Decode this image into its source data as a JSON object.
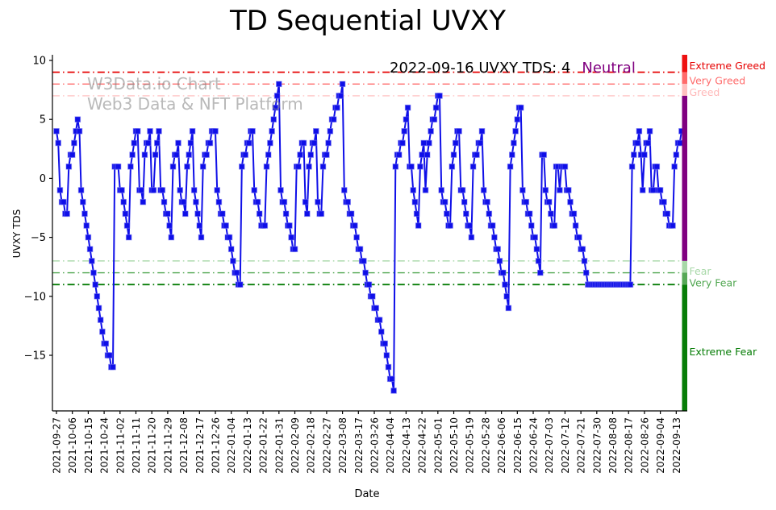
{
  "title": "TD Sequential UVXY",
  "watermark": {
    "line1": "W3Data.io Chart",
    "line2": "Web3 Data & NFT Platform"
  },
  "annotation": {
    "text": "2022-09-16 UVXY TDS: 4",
    "status": "Neutral",
    "status_color": "#800080"
  },
  "axes": {
    "xlabel": "Date",
    "ylabel": "UVXY TDS",
    "yticks": [
      {
        "value": 10,
        "label": "10"
      },
      {
        "value": 5,
        "label": "5"
      },
      {
        "value": 0,
        "label": "0"
      },
      {
        "value": -5,
        "label": "−5"
      },
      {
        "value": -10,
        "label": "−10"
      },
      {
        "value": -15,
        "label": "−15"
      }
    ],
    "ylim": [
      -19.7,
      10.48
    ]
  },
  "chart_data": {
    "type": "line",
    "title": "TD Sequential UVXY",
    "xlabel": "Date",
    "ylabel": "UVXY TDS",
    "series_name": "UVXY TDS",
    "line_color": "#0f0fe8",
    "marker": "square",
    "start_date": "2021-09-27",
    "end_date": "2022-09-16",
    "tick_step": 9,
    "x_tick_labels": [
      "2021-09-27",
      "2021-10-06",
      "2021-10-15",
      "2021-10-24",
      "2021-11-02",
      "2021-11-11",
      "2021-11-20",
      "2021-11-29",
      "2021-12-08",
      "2021-12-17",
      "2021-12-26",
      "2022-01-04",
      "2022-01-13",
      "2022-01-22",
      "2022-01-31",
      "2022-02-09",
      "2022-02-18",
      "2022-02-27",
      "2022-03-08",
      "2022-03-17",
      "2022-03-26",
      "2022-04-04",
      "2022-04-13",
      "2022-04-22",
      "2022-05-01",
      "2022-05-10",
      "2022-05-19",
      "2022-05-28",
      "2022-06-06",
      "2022-06-15",
      "2022-06-24",
      "2022-07-03",
      "2022-07-12",
      "2022-07-21",
      "2022-07-30",
      "2022-08-08",
      "2022-08-17",
      "2022-08-26",
      "2022-09-04",
      "2022-09-13"
    ],
    "values": [
      4,
      3,
      -1,
      -2,
      -2,
      -3,
      -3,
      1,
      2,
      2,
      3,
      4,
      5,
      4,
      -1,
      -2,
      -3,
      -4,
      -5,
      -6,
      -7,
      -8,
      -9,
      -10,
      -11,
      -12,
      -13,
      -14,
      -14,
      -15,
      -15,
      -16,
      -16,
      1,
      1,
      1,
      -1,
      -1,
      -2,
      -3,
      -4,
      -5,
      1,
      2,
      3,
      4,
      4,
      -1,
      -1,
      -2,
      2,
      3,
      3,
      4,
      -1,
      -1,
      2,
      3,
      4,
      -1,
      -1,
      -2,
      -3,
      -3,
      -4,
      -5,
      1,
      2,
      2,
      3,
      -1,
      -2,
      -2,
      -3,
      1,
      2,
      3,
      4,
      -1,
      -2,
      -3,
      -4,
      -5,
      1,
      2,
      2,
      3,
      3,
      4,
      4,
      4,
      -1,
      -2,
      -3,
      -3,
      -4,
      -4,
      -5,
      -5,
      -6,
      -7,
      -8,
      -8,
      -9,
      -9,
      1,
      2,
      2,
      3,
      3,
      4,
      4,
      -1,
      -2,
      -2,
      -3,
      -4,
      -4,
      -4,
      1,
      2,
      3,
      4,
      5,
      6,
      7,
      8,
      -1,
      -2,
      -2,
      -3,
      -4,
      -4,
      -5,
      -6,
      -6,
      1,
      1,
      2,
      3,
      3,
      -2,
      -3,
      1,
      2,
      3,
      3,
      4,
      -2,
      -3,
      -3,
      1,
      2,
      2,
      3,
      4,
      5,
      5,
      6,
      6,
      7,
      7,
      8,
      -1,
      -2,
      -2,
      -3,
      -3,
      -4,
      -4,
      -5,
      -6,
      -6,
      -7,
      -7,
      -8,
      -9,
      -9,
      -10,
      -10,
      -11,
      -11,
      -12,
      -12,
      -13,
      -14,
      -14,
      -15,
      -16,
      -17,
      -17,
      -18,
      1,
      2,
      2,
      3,
      3,
      4,
      5,
      6,
      1,
      1,
      -1,
      -2,
      -3,
      -4,
      1,
      2,
      3,
      -1,
      2,
      3,
      4,
      5,
      5,
      6,
      7,
      7,
      -1,
      -2,
      -2,
      -3,
      -4,
      -4,
      1,
      2,
      3,
      4,
      4,
      -1,
      -1,
      -2,
      -3,
      -4,
      -4,
      -5,
      1,
      2,
      2,
      3,
      3,
      4,
      -1,
      -2,
      -2,
      -3,
      -4,
      -4,
      -5,
      -6,
      -6,
      -7,
      -8,
      -8,
      -9,
      -10,
      -11,
      1,
      2,
      3,
      4,
      5,
      6,
      6,
      -1,
      -2,
      -2,
      -3,
      -3,
      -4,
      -5,
      -5,
      -6,
      -7,
      -8,
      2,
      2,
      -1,
      -2,
      -2,
      -3,
      -4,
      -4,
      1,
      1,
      -1,
      1,
      1,
      1,
      -1,
      -1,
      -2,
      -3,
      -3,
      -4,
      -5,
      -5,
      -6,
      -6,
      -7,
      -8,
      -9,
      -9,
      -9,
      -9,
      -9,
      -9,
      -9,
      -9,
      -9,
      -9,
      -9,
      -9,
      -9,
      -9,
      -9,
      -9,
      -9,
      -9,
      -9,
      -9,
      -9,
      -9,
      -9,
      -9,
      -9,
      1,
      2,
      3,
      3,
      4,
      2,
      -1,
      2,
      3,
      3,
      4,
      -1,
      -1,
      1,
      1,
      -1,
      -1,
      -2,
      -2,
      -3,
      -3,
      -4,
      -4,
      -4,
      1,
      2,
      3,
      3,
      4
    ],
    "threshold_lines": [
      {
        "value": 9,
        "color": "#e60000",
        "width": 1.7,
        "zone": "Extreme Greed"
      },
      {
        "value": 8,
        "color": "#ff6b6b",
        "width": 1.4,
        "zone": "Very Greed"
      },
      {
        "value": 7,
        "color": "#ffb8b8",
        "width": 1.2,
        "zone": "Greed"
      },
      {
        "value": -7,
        "color": "#9fd49f",
        "width": 1.2,
        "zone": "Fear"
      },
      {
        "value": -8,
        "color": "#4fa64f",
        "width": 1.4,
        "zone": "Very Fear"
      },
      {
        "value": -9,
        "color": "#067d06",
        "width": 1.9,
        "zone": "Extreme Fear"
      }
    ],
    "zone_bands": [
      {
        "from": 10.48,
        "to": 9,
        "color": "#ee1111",
        "zone": "Extreme Greed"
      },
      {
        "from": 9,
        "to": 8,
        "color": "#ff6b6b",
        "zone": "Very Greed"
      },
      {
        "from": 8,
        "to": 7,
        "color": "#ffc0c0",
        "zone": "Greed"
      },
      {
        "from": 7,
        "to": -7,
        "color": "#800080",
        "zone": "Neutral"
      },
      {
        "from": -7,
        "to": -8,
        "color": "#a8d8a8",
        "zone": "Fear"
      },
      {
        "from": -8,
        "to": -9,
        "color": "#57a857",
        "zone": "Very Fear"
      },
      {
        "from": -9,
        "to": -19.7,
        "color": "#077d07",
        "zone": "Extreme Fear"
      }
    ],
    "zone_labels": [
      {
        "text": "Extreme Greed",
        "value": 9.55,
        "color": "#e60000"
      },
      {
        "text": "Very Greed",
        "value": 8.3,
        "color": "#ff6b6b"
      },
      {
        "text": "Greed",
        "value": 7.3,
        "color": "#ffb8b8"
      },
      {
        "text": "Fear",
        "value": -7.85,
        "color": "#a8d8a8"
      },
      {
        "text": "Very Fear",
        "value": -8.85,
        "color": "#4fa64f"
      },
      {
        "text": "Extreme Fear",
        "value": -14.7,
        "color": "#067d06"
      }
    ],
    "legend_position": "none",
    "grid": false
  }
}
